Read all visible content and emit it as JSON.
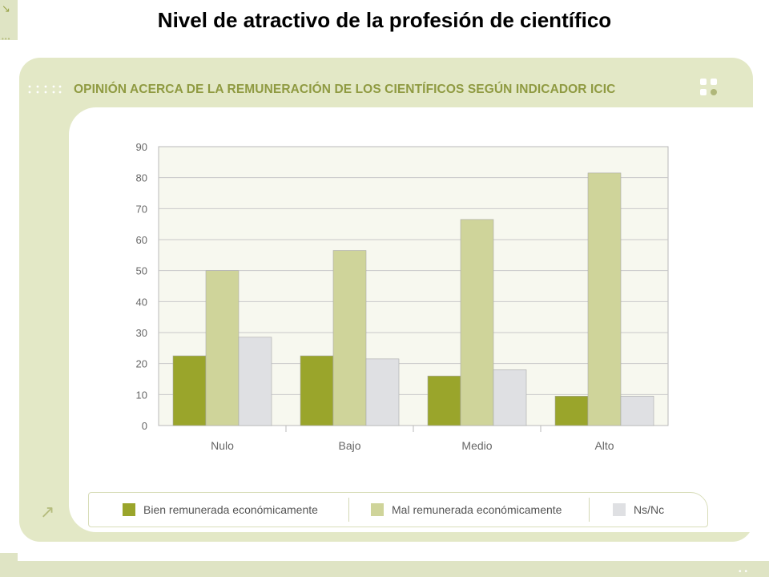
{
  "page": {
    "title": "Nivel de atractivo de la profesión de científico"
  },
  "chart_data": {
    "type": "bar",
    "title": "OPINIÓN ACERCA DE LA REMUNERACIÓN DE LOS CIENTÍFICOS SEGÚN INDICADOR ICIC",
    "xlabel": "",
    "ylabel": "",
    "ylim": [
      0,
      90
    ],
    "yticks": [
      0,
      10,
      20,
      30,
      40,
      50,
      60,
      70,
      80,
      90
    ],
    "grid": true,
    "legend_position": "bottom",
    "categories": [
      "Nulo",
      "Bajo",
      "Medio",
      "Alto"
    ],
    "series": [
      {
        "name": "Bien remunerada económicamente",
        "color": "#9aa52b",
        "values": [
          22.5,
          22.5,
          16,
          9.5
        ]
      },
      {
        "name": "Mal remunerada económicamente",
        "color": "#cfd49a",
        "values": [
          50,
          56.5,
          66.5,
          81.5
        ]
      },
      {
        "name": "Ns/Nc",
        "color": "#dfe0e3",
        "values": [
          28.5,
          21.5,
          18,
          9.5
        ]
      }
    ]
  }
}
